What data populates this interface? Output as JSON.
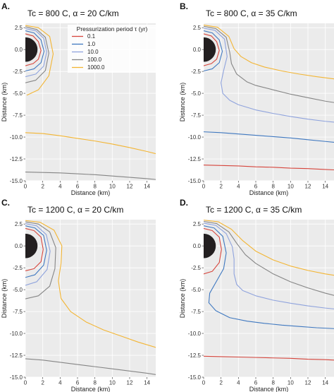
{
  "figure": {
    "panels": [
      "A.",
      "B.",
      "C.",
      "D."
    ],
    "legend_title": "Pressurization period τ (yr)",
    "colors": {
      "tau_0.1": "#d6453c",
      "tau_1": "#3f78c0",
      "tau_10": "#8fa3dd",
      "tau_100": "#858585",
      "tau_1000": "#f3b533",
      "background": "#ebebeb",
      "grid": "#ffffff",
      "chamber": "#231f20"
    }
  },
  "chart_data": [
    {
      "type": "line",
      "panel": "A.",
      "title": "Tc = 800 C, α = 20 C/km",
      "xlabel": "Distance (km)",
      "ylabel": "Distance (km)",
      "xlim": [
        0,
        15
      ],
      "ylim": [
        -15,
        3
      ],
      "xticks": [
        0,
        2,
        4,
        6,
        8,
        10,
        12,
        14
      ],
      "yticks": [
        2.5,
        0.0,
        -2.5,
        -5.0,
        -7.5,
        -10.0,
        -12.5,
        -15.0
      ],
      "xtick_labels": [
        "0",
        "2",
        "4",
        "6",
        "8",
        "10",
        "12",
        "14"
      ],
      "ytick_labels": [
        "2.5",
        "0.0",
        "-2.5",
        "-5.0",
        "-7.5",
        "-10.0",
        "-12.5",
        "-15.0"
      ],
      "grid": true,
      "legend": {
        "placement": "top-center",
        "title": "Pressurization period τ (yr)",
        "entries": [
          "0.1",
          "1.0",
          "10.0",
          "100.0",
          "1000.0"
        ]
      },
      "chamber": {
        "center": [
          0,
          0
        ],
        "radius": 1.4
      },
      "series": [
        {
          "name": "0.1",
          "color": "#d6453c",
          "x": [
            0,
            0.9,
            1.5,
            1.8,
            1.5,
            0.9,
            0
          ],
          "y": [
            1.8,
            1.55,
            0.9,
            -0.1,
            -1.1,
            -1.6,
            -1.85
          ]
        },
        {
          "name": "1.0",
          "color": "#3f78c0",
          "x": [
            0,
            1.0,
            1.8,
            2.15,
            1.8,
            1.0,
            0
          ],
          "y": [
            2.15,
            1.9,
            1.1,
            -0.2,
            -1.5,
            -2.2,
            -2.45
          ]
        },
        {
          "name": "10.0",
          "color": "#8fa3dd",
          "x": [
            0,
            1.2,
            2.1,
            2.45,
            2.1,
            1.2,
            0
          ],
          "y": [
            2.4,
            2.15,
            1.3,
            -0.3,
            -1.9,
            -2.8,
            -3.1
          ]
        },
        {
          "name": "100.0",
          "color": "#858585",
          "x": [
            0,
            1.3,
            2.3,
            2.7,
            2.3,
            1.2,
            0
          ],
          "y": [
            2.6,
            2.3,
            1.4,
            -0.4,
            -2.4,
            -3.5,
            -3.8
          ]
        },
        {
          "name": "1000.0",
          "color": "#f3b533",
          "x": [
            0,
            1.5,
            2.8,
            3.2,
            2.7,
            1.5,
            0.2
          ],
          "y": [
            2.75,
            2.5,
            1.5,
            -0.5,
            -3.0,
            -4.6,
            -5.2
          ]
        },
        {
          "name": "1000.0",
          "color": "#f3b533",
          "x": [
            0,
            2,
            4,
            6,
            8,
            10,
            12,
            14,
            15
          ],
          "y": [
            -9.5,
            -9.6,
            -9.85,
            -10.15,
            -10.45,
            -10.8,
            -11.2,
            -11.65,
            -11.9
          ]
        },
        {
          "name": "100.0",
          "color": "#858585",
          "x": [
            0,
            2,
            4,
            6,
            8,
            10,
            12,
            14,
            15
          ],
          "y": [
            -14.0,
            -14.05,
            -14.1,
            -14.2,
            -14.3,
            -14.45,
            -14.6,
            -14.75,
            -14.85
          ]
        }
      ]
    },
    {
      "type": "line",
      "panel": "B.",
      "title": "Tc = 800 C, α = 35 C/km",
      "xlabel": "Distance (km)",
      "ylabel": "Distance (km)",
      "xlim": [
        0,
        15
      ],
      "ylim": [
        -15,
        3
      ],
      "xticks": [
        0,
        2,
        4,
        6,
        8,
        10,
        12,
        14
      ],
      "yticks": [
        2.5,
        0.0,
        -2.5,
        -5.0,
        -7.5,
        -10.0,
        -12.5,
        -15.0
      ],
      "xtick_labels": [
        "0",
        "2",
        "4",
        "6",
        "8",
        "10",
        "12",
        "14"
      ],
      "ytick_labels": [
        "2.5",
        "0.0",
        "-2.5",
        "-5.0",
        "-7.5",
        "-10.0",
        "-12.5",
        "-15.0"
      ],
      "grid": true,
      "chamber": {
        "center": [
          0,
          0
        ],
        "radius": 1.4
      },
      "series": [
        {
          "name": "0.1",
          "color": "#d6453c",
          "x": [
            0,
            0.9,
            1.5,
            1.8,
            1.5,
            0.9,
            0
          ],
          "y": [
            1.8,
            1.55,
            0.9,
            -0.1,
            -1.1,
            -1.6,
            -1.85
          ]
        },
        {
          "name": "1.0",
          "color": "#3f78c0",
          "x": [
            0,
            1.0,
            1.8,
            2.15,
            1.8,
            1.0,
            0
          ],
          "y": [
            2.15,
            1.9,
            1.1,
            -0.2,
            -1.5,
            -2.2,
            -2.45
          ]
        },
        {
          "name": "10.0",
          "color": "#8fa3dd",
          "x": [
            0,
            1.3,
            2.4,
            2.7,
            2.3,
            2.0,
            2.2,
            3.0,
            4,
            6,
            8,
            10,
            12,
            14,
            15
          ],
          "y": [
            2.45,
            2.2,
            1.2,
            -0.8,
            -2.4,
            -3.8,
            -5.0,
            -5.8,
            -6.3,
            -6.9,
            -7.3,
            -7.65,
            -7.95,
            -8.2,
            -8.3
          ]
        },
        {
          "name": "100.0",
          "color": "#858585",
          "x": [
            0,
            1.4,
            2.6,
            3.0,
            3.2,
            3.8,
            5,
            6,
            8,
            10,
            12,
            14,
            15
          ],
          "y": [
            2.65,
            2.4,
            1.4,
            -0.3,
            -1.6,
            -2.8,
            -3.7,
            -4.1,
            -4.6,
            -5.1,
            -5.5,
            -5.9,
            -6.05
          ]
        },
        {
          "name": "1000.0",
          "color": "#f3b533",
          "x": [
            0,
            1.6,
            2.9,
            3.5,
            4.3,
            5.5,
            7,
            9,
            11,
            13,
            15
          ],
          "y": [
            2.8,
            2.55,
            1.5,
            0.1,
            -0.8,
            -1.5,
            -2.0,
            -2.45,
            -2.8,
            -3.1,
            -3.35
          ]
        },
        {
          "name": "1.0",
          "color": "#3f78c0",
          "x": [
            0,
            2,
            4,
            6,
            8,
            10,
            12,
            14,
            15
          ],
          "y": [
            -9.4,
            -9.5,
            -9.65,
            -9.8,
            -9.95,
            -10.1,
            -10.3,
            -10.5,
            -10.6
          ]
        },
        {
          "name": "0.1",
          "color": "#d6453c",
          "x": [
            0,
            2,
            4,
            6,
            8,
            10,
            12,
            14,
            15
          ],
          "y": [
            -13.2,
            -13.25,
            -13.3,
            -13.4,
            -13.45,
            -13.55,
            -13.6,
            -13.7,
            -13.75
          ]
        }
      ]
    },
    {
      "type": "line",
      "panel": "C.",
      "title": "Tc = 1200 C, α = 20 C/km",
      "xlabel": "Distance (km)",
      "ylabel": "Distance (km)",
      "xlim": [
        0,
        15
      ],
      "ylim": [
        -15,
        3
      ],
      "xticks": [
        0,
        2,
        4,
        6,
        8,
        10,
        12,
        14
      ],
      "yticks": [
        2.5,
        0.0,
        -2.5,
        -5.0,
        -7.5,
        -10.0,
        -12.5,
        -15.0
      ],
      "xtick_labels": [
        "0",
        "2",
        "4",
        "6",
        "8",
        "10",
        "12",
        "14"
      ],
      "ytick_labels": [
        "2.5",
        "0.0",
        "-2.5",
        "-5.0",
        "-7.5",
        "-10.0",
        "-12.5",
        "-15.0"
      ],
      "grid": true,
      "chamber": {
        "center": [
          0,
          0
        ],
        "radius": 1.4
      },
      "series": [
        {
          "name": "0.1",
          "color": "#d6453c",
          "x": [
            0,
            1.0,
            1.8,
            2.05,
            1.8,
            1.0,
            0
          ],
          "y": [
            2.0,
            1.75,
            1.0,
            -0.4,
            -1.8,
            -2.6,
            -2.85
          ]
        },
        {
          "name": "1.0",
          "color": "#3f78c0",
          "x": [
            0,
            1.1,
            2.1,
            2.45,
            2.1,
            1.1,
            0
          ],
          "y": [
            2.3,
            2.05,
            1.2,
            -0.5,
            -2.2,
            -3.3,
            -3.6
          ]
        },
        {
          "name": "10.0",
          "color": "#8fa3dd",
          "x": [
            0,
            1.3,
            2.4,
            2.85,
            2.5,
            1.3,
            0
          ],
          "y": [
            2.55,
            2.3,
            1.3,
            -0.6,
            -2.7,
            -4.1,
            -4.5
          ]
        },
        {
          "name": "100.0",
          "color": "#858585",
          "x": [
            0,
            1.5,
            2.8,
            3.5,
            3.4,
            2.8,
            1.5,
            0
          ],
          "y": [
            2.75,
            2.5,
            1.6,
            -0.2,
            -2.6,
            -4.6,
            -5.7,
            -6.05
          ]
        },
        {
          "name": "1000.0",
          "color": "#f3b533",
          "x": [
            0,
            1.7,
            3.3,
            4.2,
            4.1,
            3.8,
            4.1,
            5.2,
            7,
            9,
            11,
            13,
            15
          ],
          "y": [
            2.9,
            2.7,
            1.8,
            0.0,
            -2.0,
            -4.0,
            -6.0,
            -7.5,
            -8.7,
            -9.6,
            -10.3,
            -11.0,
            -11.6
          ]
        },
        {
          "name": "100.0",
          "color": "#858585",
          "x": [
            0,
            2,
            4,
            6,
            8,
            10,
            12,
            14,
            15
          ],
          "y": [
            -12.9,
            -13.05,
            -13.3,
            -13.55,
            -13.8,
            -14.05,
            -14.3,
            -14.55,
            -14.7
          ]
        }
      ]
    },
    {
      "type": "line",
      "panel": "D.",
      "title": "Tc = 1200 C, α = 35 C/km",
      "xlabel": "Distance (km)",
      "ylabel": "Distance (km)",
      "xlim": [
        0,
        15
      ],
      "ylim": [
        -15,
        3
      ],
      "xticks": [
        0,
        2,
        4,
        6,
        8,
        10,
        12,
        14
      ],
      "yticks": [
        2.5,
        0.0,
        -2.5,
        -5.0,
        -7.5,
        -10.0,
        -12.5,
        -15.0
      ],
      "xtick_labels": [
        "0",
        "2",
        "4",
        "6",
        "8",
        "10",
        "12",
        "14"
      ],
      "ytick_labels": [
        "2.5",
        "0.0",
        "-2.5",
        "-5.0",
        "-7.5",
        "-10.0",
        "-12.5",
        "-15.0"
      ],
      "grid": true,
      "chamber": {
        "center": [
          0,
          0
        ],
        "radius": 1.4
      },
      "series": [
        {
          "name": "0.1",
          "color": "#d6453c",
          "x": [
            0,
            1.0,
            1.8,
            2.05,
            1.8,
            1.0,
            0
          ],
          "y": [
            2.0,
            1.75,
            1.0,
            -0.4,
            -1.9,
            -2.9,
            -3.2
          ]
        },
        {
          "name": "1.0",
          "color": "#3f78c0",
          "x": [
            0,
            1.2,
            2.2,
            2.6,
            2.3,
            1.5,
            0.7,
            0.6,
            1.4,
            3,
            5,
            7,
            9,
            11,
            13,
            15
          ],
          "y": [
            2.3,
            2.05,
            1.1,
            -0.8,
            -2.6,
            -4.0,
            -5.4,
            -6.5,
            -7.4,
            -8.2,
            -8.6,
            -8.85,
            -9.05,
            -9.2,
            -9.35,
            -9.45
          ]
        },
        {
          "name": "10.0",
          "color": "#8fa3dd",
          "x": [
            0,
            1.4,
            2.6,
            3.3,
            3.5,
            3.5,
            3.8,
            4.5,
            6,
            8,
            10,
            12,
            14,
            15
          ],
          "y": [
            2.6,
            2.35,
            1.4,
            -0.1,
            -1.5,
            -3.2,
            -4.4,
            -5.1,
            -5.7,
            -6.2,
            -6.55,
            -6.85,
            -7.1,
            -7.2
          ]
        },
        {
          "name": "100.0",
          "color": "#858585",
          "x": [
            0,
            1.5,
            2.9,
            3.8,
            4.8,
            6,
            8,
            10,
            12,
            14,
            15
          ],
          "y": [
            2.8,
            2.55,
            1.6,
            0.3,
            -1.0,
            -2.0,
            -3.2,
            -4.1,
            -4.8,
            -5.4,
            -5.65
          ]
        },
        {
          "name": "1000.0",
          "color": "#f3b533",
          "x": [
            0,
            1.7,
            3.2,
            4.5,
            6,
            8,
            10,
            12,
            14,
            15
          ],
          "y": [
            2.95,
            2.75,
            1.9,
            0.6,
            -0.6,
            -1.6,
            -2.3,
            -2.8,
            -3.2,
            -3.35
          ]
        },
        {
          "name": "0.1",
          "color": "#d6453c",
          "x": [
            0,
            2,
            4,
            6,
            8,
            10,
            12,
            14,
            15
          ],
          "y": [
            -12.6,
            -12.65,
            -12.7,
            -12.75,
            -12.8,
            -12.85,
            -12.95,
            -13.0,
            -13.05
          ]
        }
      ]
    }
  ]
}
